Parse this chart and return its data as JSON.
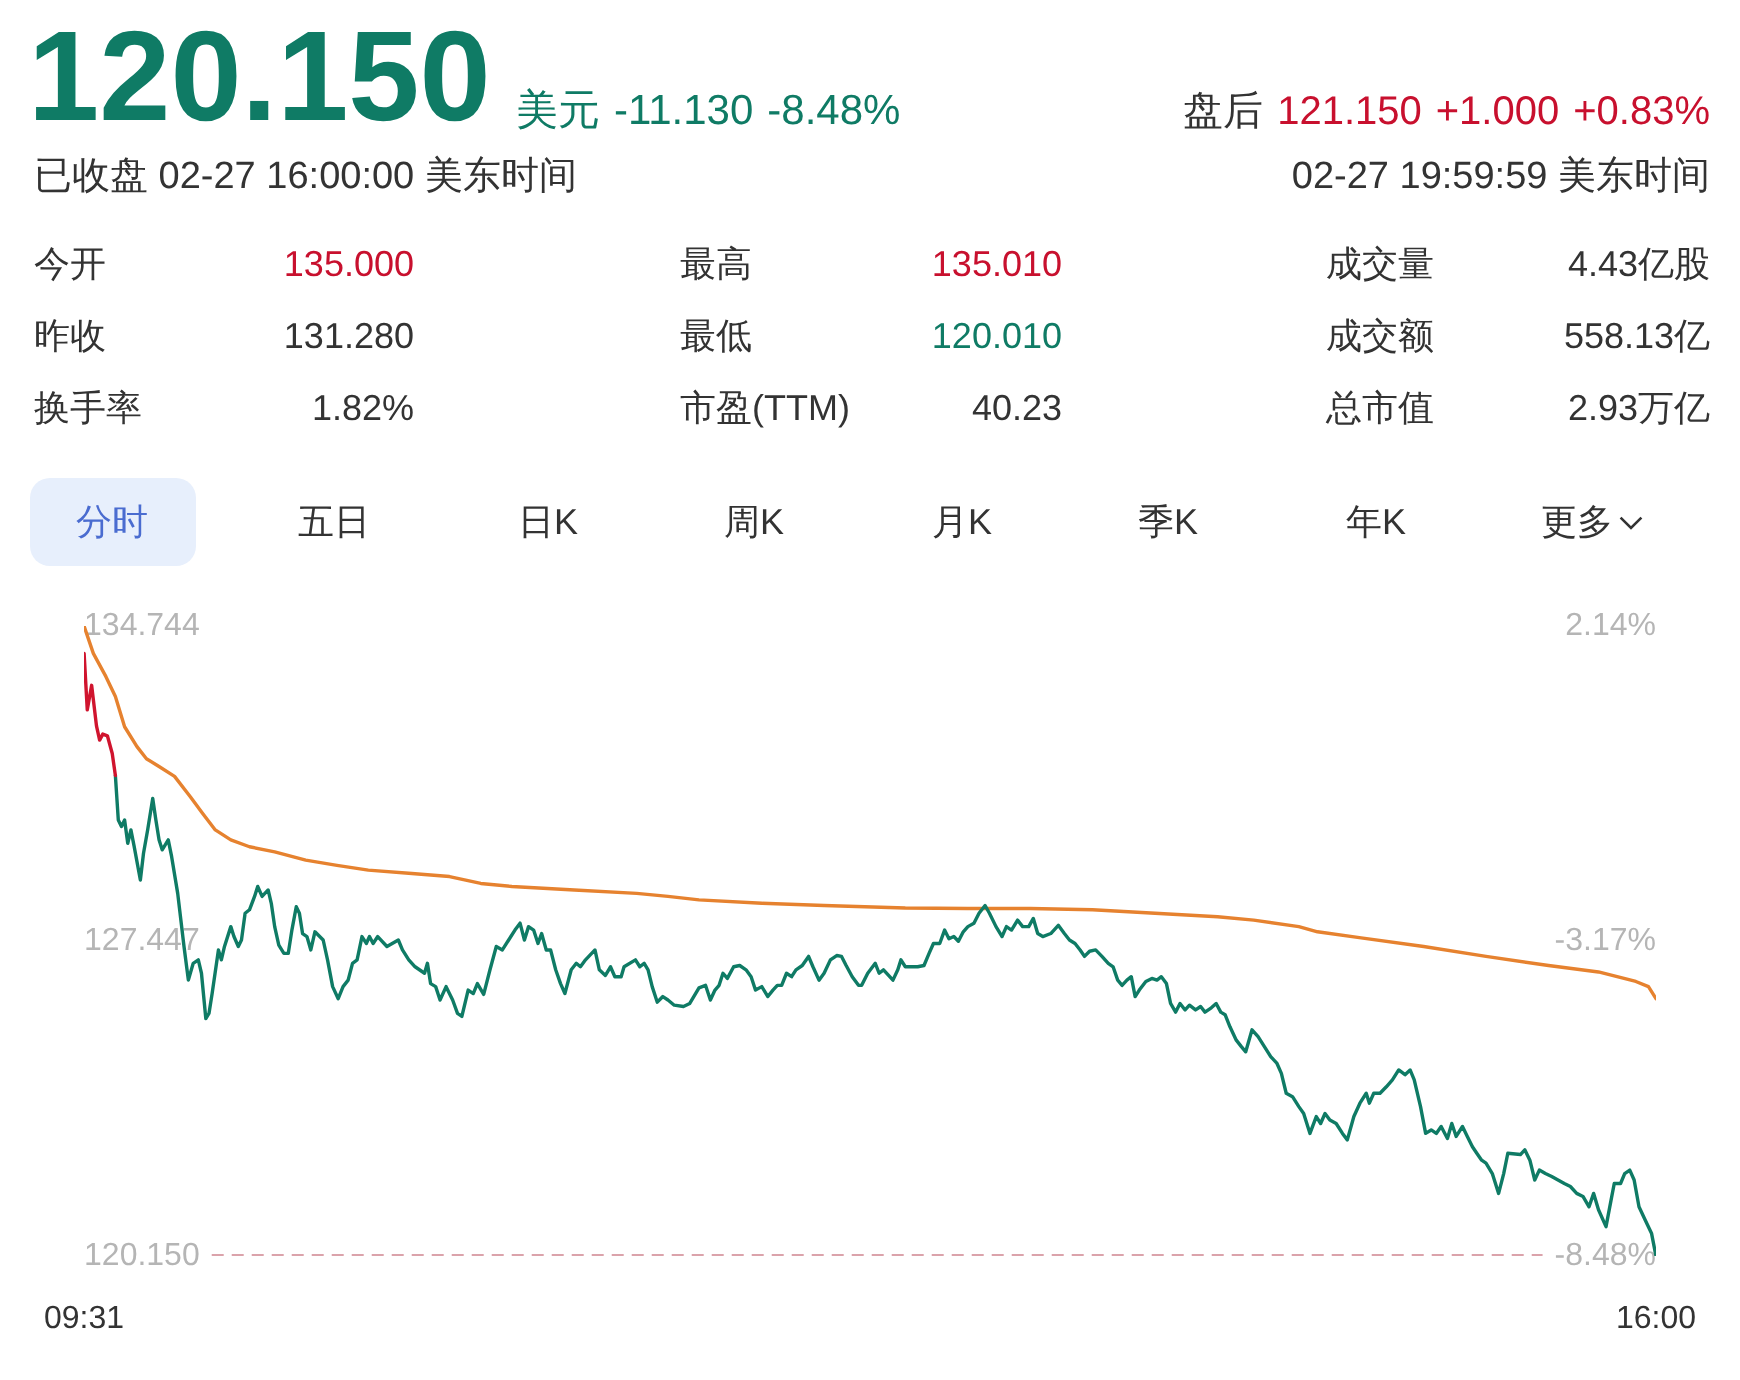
{
  "chart_data": [
    {
      "type": "other",
      "title": "120.150",
      "subtitle": "已收盘 02-27 16:00:00 美东时间",
      "annotations": [
        "美元",
        "-11.130",
        "-8.48%",
        "盘后",
        "121.150",
        "+1.000",
        "+0.83%",
        "02-27 19:59:59 美东时间",
        "今开",
        "135.000",
        "最高",
        "135.010",
        "成交量",
        "4.43亿股",
        "昨收",
        "131.280",
        "最低",
        "120.010",
        "成交额",
        "558.13亿",
        "换手率",
        "1.82%",
        "市盈(TTM)",
        "40.23",
        "总市值",
        "2.93万亿",
        "分时",
        "五日",
        "日K",
        "周K",
        "月K",
        "季K",
        "年K",
        "更多"
      ]
    },
    {
      "type": "line",
      "xlim": [
        9.5167,
        16
      ],
      "xticks": [
        {
          "value": 9.5167,
          "label": "09:31"
        },
        {
          "value": 16,
          "label": "16:00"
        }
      ],
      "ylim": [
        120.15,
        134.744
      ],
      "yticks": [
        134.744,
        127.447,
        {
          "value": 120.15,
          "label": "120.150"
        }
      ],
      "y2lim": [
        -8.48,
        2.14
      ],
      "y2ticks": [
        {
          "value": 2.14,
          "label": "2.14%"
        },
        {
          "value": -3.17,
          "label": "-3.17%"
        },
        {
          "value": -8.48,
          "label": "-8.48%"
        }
      ],
      "grid": false,
      "marker": "none",
      "ref_lines": [
        {
          "axis": "y",
          "value": 120.15,
          "color": "#dba3ab",
          "line_style": "dashed"
        }
      ],
      "series": [
        {
          "type": "line",
          "color": "#d0142e",
          "x": [
            9.517,
            9.53,
            9.548,
            9.568,
            9.581,
            9.594,
            9.613,
            9.633,
            9.646
          ],
          "values": [
            134.11,
            132.8,
            133.37,
            132.43,
            132.1,
            132.24,
            132.2,
            131.79,
            131.28
          ]
        },
        {
          "type": "line",
          "color": "#0f7b65",
          "x": [
            9.646,
            9.658,
            9.671,
            9.684,
            9.697,
            9.71,
            9.723,
            9.749,
            9.762,
            9.779,
            9.8,
            9.813,
            9.826,
            9.839,
            9.864,
            9.878,
            9.903,
            9.929,
            9.947,
            9.967,
            9.988,
            10.001,
            10.019,
            10.032,
            10.045,
            10.071,
            10.083,
            10.096,
            10.122,
            10.135,
            10.153,
            10.166,
            10.181,
            10.199,
            10.22,
            10.233,
            10.251,
            10.276,
            10.289,
            10.303,
            10.32,
            10.341,
            10.359,
            10.374,
            10.392,
            10.405,
            10.418,
            10.436,
            10.452,
            10.469,
            10.503,
            10.521,
            10.542,
            10.565,
            10.585,
            10.606,
            10.624,
            10.643,
            10.663,
            10.681,
            10.694,
            10.709,
            10.728,
            10.766,
            10.813,
            10.83,
            10.856,
            10.882,
            10.921,
            10.933,
            10.946,
            10.967,
            10.985,
            11.01,
            11.037,
            11.057,
            11.075,
            11.101,
            11.122,
            11.139,
            11.165,
            11.191,
            11.217,
            11.242,
            11.268,
            11.294,
            11.315,
            11.333,
            11.35,
            11.371,
            11.389,
            11.404,
            11.423,
            11.441,
            11.462,
            11.482,
            11.5,
            11.526,
            11.547,
            11.564,
            11.585,
            11.624,
            11.642,
            11.667,
            11.688,
            11.706,
            11.732,
            11.744,
            11.791,
            11.809,
            11.827,
            11.843,
            11.86,
            11.881,
            11.904,
            11.925,
            11.951,
            11.989,
            12.015,
            12.053,
            12.08,
            12.1,
            12.119,
            12.136,
            12.152,
            12.17,
            12.196,
            12.221,
            12.247,
            12.268,
            12.286,
            12.312,
            12.337,
            12.358,
            12.376,
            12.394,
            12.414,
            12.435,
            12.453,
            12.479,
            12.505,
            12.523,
            12.548,
            12.569,
            12.595,
            12.621,
            12.641,
            12.66,
            12.685,
            12.711,
            12.724,
            12.749,
            12.78,
            12.796,
            12.814,
            12.853,
            12.873,
            12.886,
            12.904,
            12.955,
            12.981,
            13.002,
            13.02,
            13.046,
            13.066,
            13.084,
            13.104,
            13.123,
            13.143,
            13.162,
            13.187,
            13.208,
            13.233,
            13.251,
            13.278,
            13.303,
            13.321,
            13.342,
            13.367,
            13.388,
            13.413,
            13.432,
            13.45,
            13.471,
            13.504,
            13.535,
            13.56,
            13.581,
            13.604,
            13.625,
            13.643,
            13.664,
            13.689,
            13.715,
            13.741,
            13.761,
            13.78,
            13.798,
            13.818,
            13.836,
            13.852,
            13.869,
            13.896,
            13.921,
            13.942,
            13.96,
            13.981,
            13.998,
            14.019,
            14.037,
            14.058,
            14.076,
            14.101,
            14.122,
            14.14,
            14.166,
            14.186,
            14.205,
            14.223,
            14.243,
            14.269,
            14.29,
            14.308,
            14.334,
            14.359,
            14.385,
            14.411,
            14.437,
            14.455,
            14.475,
            14.501,
            14.527,
            14.547,
            14.573,
            14.599,
            14.617,
            14.635,
            14.655,
            14.681,
            14.707,
            14.727,
            14.754,
            14.779,
            14.805,
            14.818,
            14.836,
            14.862,
            14.888,
            14.913,
            14.939,
            14.965,
            14.986,
            15.003,
            15.029,
            15.05,
            15.073,
            15.094,
            15.114,
            15.14,
            15.158,
            15.176,
            15.202,
            15.222,
            15.243,
            15.261,
            15.281,
            15.299,
            15.325,
            15.351,
            15.372,
            15.389,
            15.441,
            15.459,
            15.48,
            15.5,
            15.519,
            15.544,
            15.57,
            15.596,
            15.622,
            15.647,
            15.673,
            15.699,
            15.724,
            15.743,
            15.763,
            15.794,
            15.815,
            15.828,
            15.854,
            15.871,
            15.892,
            15.91,
            15.93,
            15.956,
            15.982,
            16.0
          ],
          "values": [
            131.28,
            130.25,
            130.1,
            130.25,
            129.71,
            130.02,
            129.65,
            128.86,
            129.48,
            130.02,
            130.75,
            130.25,
            129.79,
            129.56,
            129.79,
            129.4,
            128.55,
            127.32,
            126.54,
            126.93,
            127.01,
            126.7,
            125.65,
            125.77,
            126.23,
            127.24,
            127.01,
            127.32,
            127.78,
            127.55,
            127.32,
            127.47,
            128.09,
            128.17,
            128.48,
            128.71,
            128.48,
            128.63,
            128.32,
            127.78,
            127.35,
            127.16,
            127.16,
            127.7,
            128.24,
            128.09,
            127.62,
            127.55,
            127.24,
            127.66,
            127.47,
            127.01,
            126.39,
            126.11,
            126.39,
            126.54,
            126.93,
            127.01,
            127.55,
            127.39,
            127.55,
            127.39,
            127.55,
            127.32,
            127.47,
            127.24,
            127.01,
            126.85,
            126.7,
            126.93,
            126.46,
            126.39,
            126.08,
            126.39,
            126.08,
            125.77,
            125.7,
            126.31,
            126.23,
            126.46,
            126.21,
            126.78,
            127.32,
            127.24,
            127.47,
            127.7,
            127.86,
            127.47,
            127.78,
            127.7,
            127.39,
            127.62,
            127.24,
            127.24,
            126.78,
            126.46,
            126.23,
            126.78,
            126.93,
            126.85,
            127.01,
            127.24,
            126.78,
            126.65,
            126.85,
            126.62,
            126.62,
            126.85,
            127.01,
            126.85,
            126.93,
            126.78,
            126.39,
            126.03,
            126.16,
            126.08,
            125.96,
            125.93,
            126.0,
            126.36,
            126.42,
            126.08,
            126.31,
            126.42,
            126.7,
            126.58,
            126.85,
            126.88,
            126.78,
            126.62,
            126.31,
            126.39,
            126.16,
            126.31,
            126.42,
            126.42,
            126.7,
            126.62,
            126.78,
            126.88,
            127.09,
            126.85,
            126.54,
            126.7,
            127.01,
            127.11,
            127.09,
            126.88,
            126.62,
            126.42,
            126.42,
            126.7,
            126.93,
            126.7,
            126.78,
            126.54,
            126.78,
            127.01,
            126.85,
            126.85,
            126.88,
            127.16,
            127.39,
            127.39,
            127.7,
            127.5,
            127.55,
            127.44,
            127.66,
            127.78,
            127.86,
            128.09,
            128.27,
            128.09,
            127.78,
            127.55,
            127.78,
            127.7,
            127.93,
            127.78,
            127.78,
            127.97,
            127.62,
            127.55,
            127.62,
            127.81,
            127.62,
            127.47,
            127.39,
            127.24,
            127.09,
            127.21,
            127.24,
            127.09,
            126.93,
            126.85,
            126.54,
            126.42,
            126.54,
            126.62,
            126.16,
            126.31,
            126.51,
            126.58,
            126.54,
            126.62,
            126.46,
            126.0,
            125.8,
            126.0,
            125.85,
            125.96,
            125.85,
            125.93,
            125.8,
            125.9,
            126.0,
            125.8,
            125.74,
            125.46,
            125.15,
            125.0,
            124.88,
            125.39,
            125.23,
            125.0,
            124.77,
            124.61,
            124.38,
            123.92,
            123.84,
            123.61,
            123.45,
            122.99,
            123.38,
            123.22,
            123.45,
            123.3,
            123.22,
            122.99,
            122.84,
            123.38,
            123.69,
            123.92,
            123.69,
            123.92,
            123.92,
            124.07,
            124.23,
            124.46,
            124.35,
            124.46,
            124.23,
            123.61,
            122.99,
            123.07,
            122.99,
            123.15,
            122.87,
            123.22,
            122.92,
            123.15,
            122.92,
            122.68,
            122.53,
            122.37,
            122.3,
            122.06,
            121.6,
            122.06,
            122.53,
            122.5,
            122.61,
            122.37,
            121.91,
            122.14,
            122.06,
            121.99,
            121.91,
            121.83,
            121.76,
            121.6,
            121.53,
            121.29,
            121.6,
            121.22,
            120.83,
            121.45,
            121.83,
            121.83,
            122.06,
            122.14,
            121.91,
            121.29,
            120.98,
            120.67,
            120.15
          ]
        },
        {
          "type": "line",
          "color": "#e6822f",
          "x": [
            9.517,
            9.555,
            9.607,
            9.646,
            9.684,
            9.735,
            9.774,
            9.826,
            9.89,
            9.955,
            10.006,
            10.058,
            10.122,
            10.199,
            10.303,
            10.431,
            10.56,
            10.689,
            10.869,
            11.024,
            11.153,
            11.281,
            11.41,
            11.539,
            11.796,
            11.925,
            12.053,
            12.312,
            12.569,
            12.904,
            13.162,
            13.419,
            13.676,
            13.934,
            14.192,
            14.341,
            14.527,
            14.604,
            14.784,
            15.042,
            15.299,
            15.557,
            15.763,
            15.917,
            15.969,
            16.0
          ],
          "values": [
            134.74,
            134.11,
            133.57,
            133.11,
            132.41,
            131.95,
            131.67,
            131.49,
            131.26,
            130.79,
            130.4,
            130.02,
            129.79,
            129.63,
            129.51,
            129.32,
            129.2,
            129.09,
            129.01,
            128.94,
            128.78,
            128.71,
            128.67,
            128.63,
            128.55,
            128.48,
            128.4,
            128.32,
            128.27,
            128.21,
            128.2,
            128.2,
            128.17,
            128.09,
            128.01,
            127.93,
            127.78,
            127.66,
            127.52,
            127.32,
            127.09,
            126.88,
            126.73,
            126.51,
            126.39,
            126.11
          ]
        }
      ]
    }
  ]
}
